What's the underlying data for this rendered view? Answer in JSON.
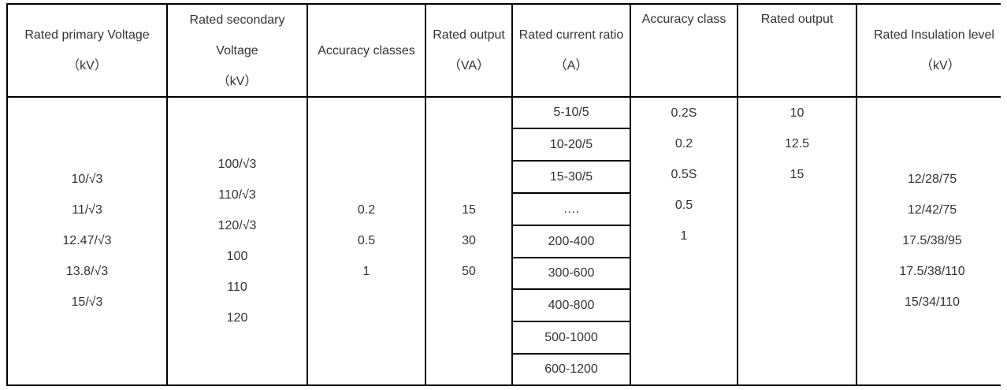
{
  "table": {
    "headers": {
      "primary_voltage": [
        "Rated primary Voltage",
        "（kV）"
      ],
      "secondary_voltage": [
        "Rated secondary",
        "Voltage",
        "（kV）"
      ],
      "accuracy_classes": [
        "Accuracy classes"
      ],
      "rated_output_va": [
        "Rated output",
        "（VA）"
      ],
      "current_ratio": [
        "Rated current ratio",
        "（A）"
      ],
      "accuracy_class": [
        "Accuracy class"
      ],
      "rated_output": [
        "Rated output"
      ],
      "insulation_level": [
        "Rated Insulation level",
        "（kV）"
      ]
    },
    "primary_voltage": [
      "10/√3",
      "11/√3",
      "12.47/√3",
      "13.8/√3",
      "15/√3"
    ],
    "secondary_voltage": [
      "100/√3",
      "110/√3",
      "120/√3",
      "100",
      "110",
      "120"
    ],
    "accuracy_classes": [
      "0.2",
      "0.5",
      "1"
    ],
    "rated_output_va": [
      "15",
      "30",
      "50"
    ],
    "current_ratio": [
      "5-10/5",
      "10-20/5",
      "15-30/5",
      "….",
      "200-400",
      "300-600",
      "400-800",
      "500-1000",
      "600-1200"
    ],
    "accuracy_class": [
      "0.2S",
      "0.2",
      "0.5S",
      "0.5",
      "1"
    ],
    "rated_output": [
      "10",
      "12.5",
      "15"
    ],
    "insulation_level": [
      "12/28/75",
      "12/42/75",
      "17.5/38/95",
      "17.5/38/110",
      "15/34/110"
    ]
  }
}
